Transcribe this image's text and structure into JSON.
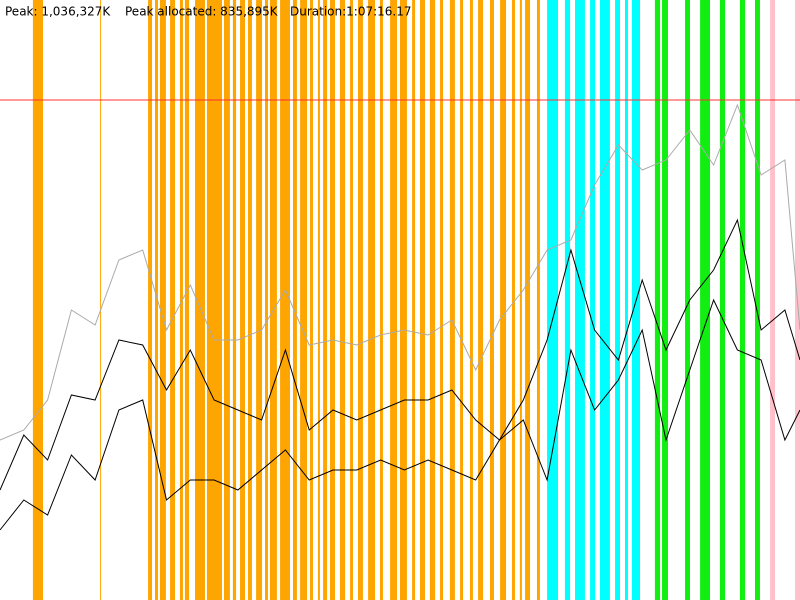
{
  "chart_data": {
    "type": "line",
    "header": [
      "Peak: 1,036,327K",
      "Peak allocated: 835,895K",
      "Duration:1:07:16.17"
    ],
    "xlim": [
      0,
      4036
    ],
    "ylim": [
      0,
      1200000
    ],
    "x": [
      0,
      120,
      240,
      360,
      480,
      600,
      720,
      840,
      960,
      1080,
      1200,
      1320,
      1440,
      1560,
      1680,
      1800,
      1920,
      2040,
      2160,
      2280,
      2400,
      2520,
      2640,
      2760,
      2880,
      3000,
      3120,
      3240,
      3360,
      3480,
      3600,
      3720,
      3840,
      3960,
      4036
    ],
    "series": [
      {
        "color": "#aaaaaa",
        "values": [
          320000,
          340000,
          400000,
          580000,
          550000,
          680000,
          700000,
          540000,
          630000,
          520000,
          520000,
          540000,
          620000,
          510000,
          520000,
          510000,
          530000,
          540000,
          530000,
          560000,
          460000,
          560000,
          620000,
          700000,
          720000,
          830000,
          910000,
          860000,
          880000,
          940000,
          870000,
          990000,
          850000,
          880000,
          540000
        ]
      },
      {
        "color": "#000000",
        "values": [
          220000,
          330000,
          280000,
          410000,
          400000,
          520000,
          510000,
          420000,
          500000,
          400000,
          380000,
          360000,
          500000,
          340000,
          380000,
          360000,
          380000,
          400000,
          400000,
          420000,
          360000,
          320000,
          400000,
          520000,
          700000,
          540000,
          480000,
          640000,
          500000,
          600000,
          660000,
          760000,
          540000,
          580000,
          480000
        ]
      },
      {
        "color": "#000000",
        "values": [
          140000,
          200000,
          170000,
          290000,
          240000,
          380000,
          400000,
          200000,
          240000,
          240000,
          220000,
          260000,
          300000,
          240000,
          260000,
          260000,
          280000,
          260000,
          280000,
          260000,
          240000,
          320000,
          360000,
          240000,
          500000,
          380000,
          440000,
          540000,
          320000,
          460000,
          600000,
          500000,
          480000,
          320000,
          380000
        ]
      }
    ],
    "bands": [
      {
        "color": "#ffa500",
        "spans": [
          [
            166,
            217
          ],
          [
            505,
            510
          ],
          [
            747,
            767
          ],
          [
            782,
            797
          ],
          [
            807,
            837
          ],
          [
            858,
            883
          ],
          [
            908,
            923
          ],
          [
            933,
            954
          ],
          [
            984,
            1034
          ],
          [
            1044,
            1120
          ],
          [
            1130,
            1160
          ],
          [
            1175,
            1191
          ],
          [
            1211,
            1236
          ],
          [
            1251,
            1271
          ],
          [
            1292,
            1322
          ],
          [
            1337,
            1352
          ],
          [
            1362,
            1397
          ],
          [
            1413,
            1463
          ],
          [
            1478,
            1498
          ],
          [
            1514,
            1549
          ],
          [
            1564,
            1579
          ],
          [
            1604,
            1614
          ],
          [
            1630,
            1650
          ],
          [
            1665,
            1690
          ],
          [
            1715,
            1741
          ],
          [
            1766,
            1781
          ],
          [
            1806,
            1831
          ],
          [
            1857,
            1892
          ],
          [
            1917,
            1932
          ],
          [
            1968,
            2003
          ],
          [
            2018,
            2053
          ],
          [
            2079,
            2094
          ],
          [
            2119,
            2144
          ],
          [
            2169,
            2195
          ],
          [
            2220,
            2235
          ],
          [
            2270,
            2295
          ],
          [
            2321,
            2336
          ],
          [
            2371,
            2386
          ],
          [
            2412,
            2437
          ],
          [
            2472,
            2492
          ],
          [
            2523,
            2553
          ],
          [
            2583,
            2598
          ],
          [
            2623,
            2633
          ],
          [
            2649,
            2674
          ],
          [
            2709,
            2724
          ]
        ]
      },
      {
        "color": "#00ffff",
        "spans": [
          [
            2760,
            2815
          ],
          [
            2850,
            2876
          ],
          [
            2901,
            2951
          ],
          [
            2977,
            3002
          ],
          [
            3027,
            3077
          ],
          [
            3103,
            3128
          ],
          [
            3153,
            3168
          ],
          [
            3188,
            3229
          ]
        ]
      },
      {
        "color": "#11ee11",
        "spans": [
          [
            3304,
            3330
          ],
          [
            3340,
            3370
          ],
          [
            3456,
            3481
          ],
          [
            3532,
            3582
          ],
          [
            3632,
            3658
          ],
          [
            3733,
            3759
          ],
          [
            3809,
            3834
          ]
        ]
      },
      {
        "color": "#ffc0cb",
        "spans": [
          [
            3885,
            3910
          ],
          [
            4011,
            4036
          ]
        ]
      }
    ]
  }
}
